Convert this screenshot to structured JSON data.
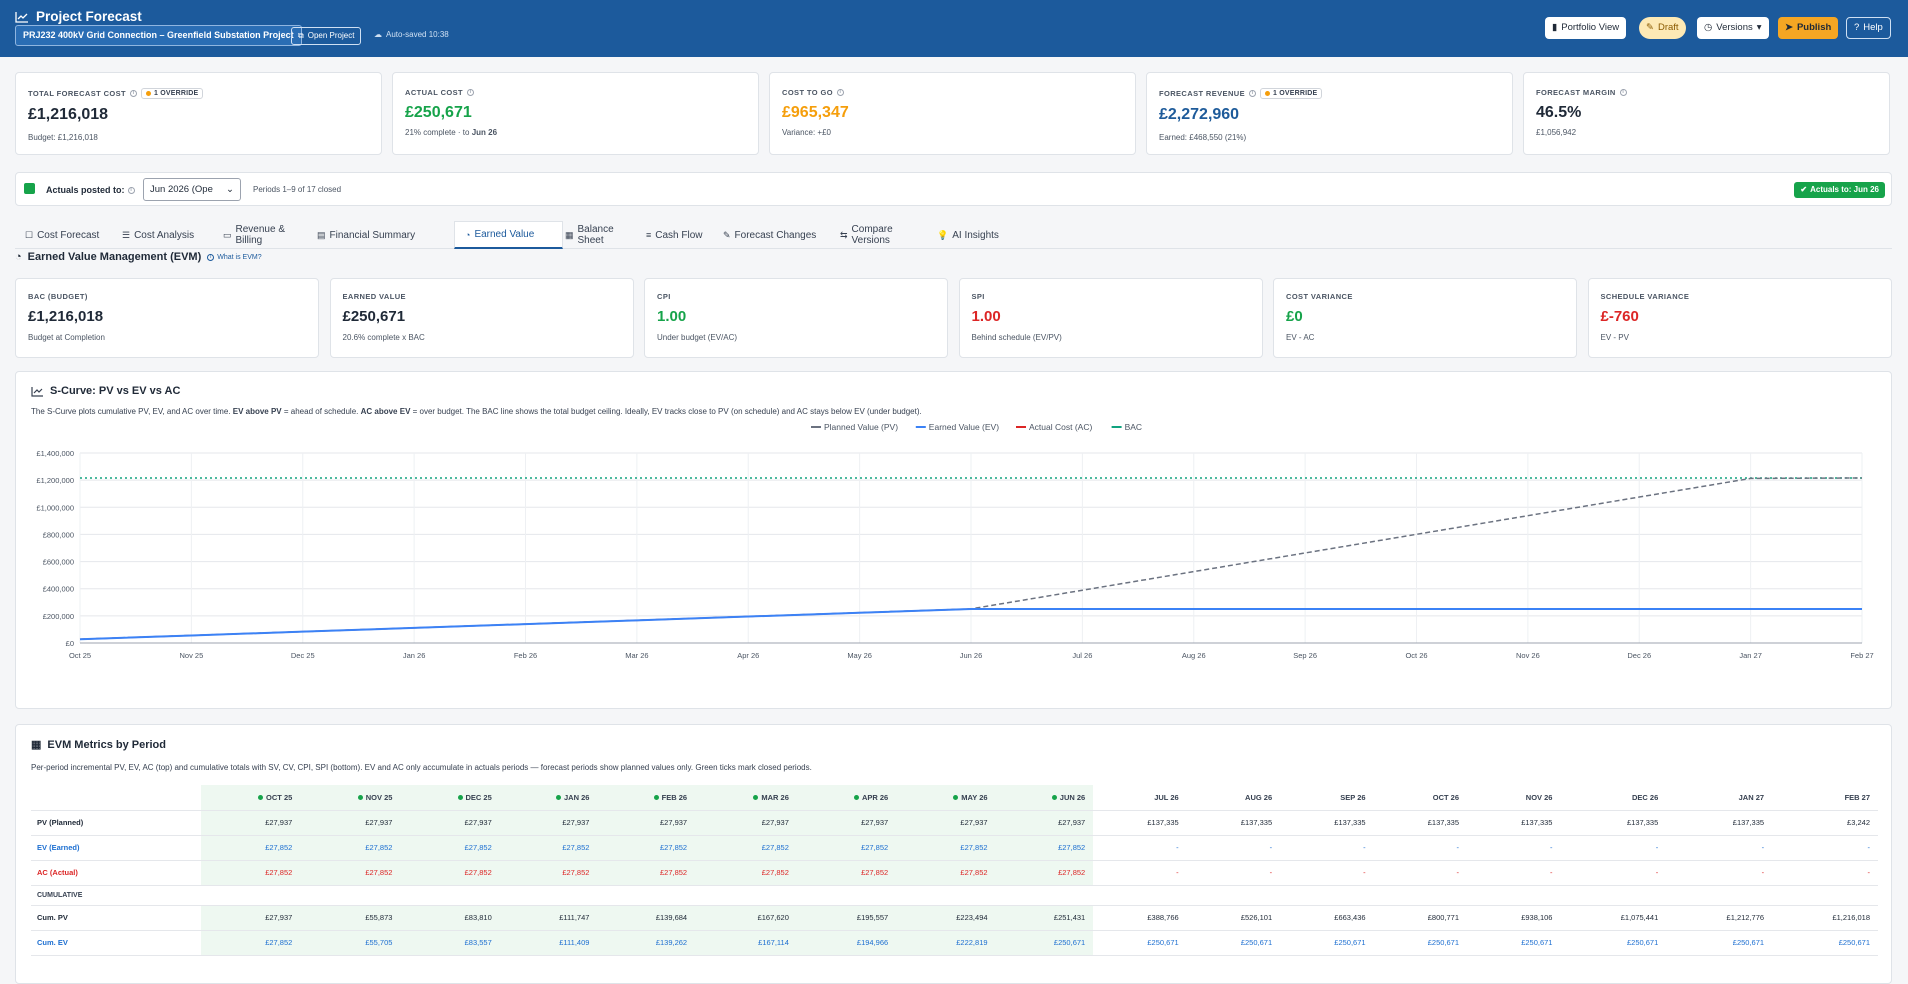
{
  "header": {
    "title": "Project Forecast",
    "project_name": "PRJ232 400kV Grid Connection – Greenfield Substation Project",
    "open_project": "Open Project",
    "autosave": "Auto-saved 10:38",
    "portfolio_view": "Portfolio View",
    "draft": "Draft",
    "versions": "Versions",
    "publish": "Publish",
    "help": "Help"
  },
  "kpis": [
    {
      "label": "TOTAL FORECAST COST",
      "badge": "1 OVERRIDE",
      "value": "£1,216,018",
      "sub": "Budget: £1,216,018",
      "color": "#1f2937"
    },
    {
      "label": "ACTUAL COST",
      "value": "£250,671",
      "sub_a": "21% complete · to ",
      "sub_b": "Jun 26",
      "color": "#16a34a"
    },
    {
      "label": "COST TO GO",
      "value": "£965,347",
      "sub": "Variance: +£0",
      "color": "#f59e0b"
    },
    {
      "label": "FORECAST REVENUE",
      "badge": "1 OVERRIDE",
      "value": "£2,272,960",
      "sub": "Earned: £468,550 (21%)",
      "color": "#1e5b9a"
    },
    {
      "label": "FORECAST MARGIN",
      "value": "46.5%",
      "sub": "£1,056,942",
      "color": "#1f2937"
    }
  ],
  "actuals": {
    "label": "Actuals posted to:",
    "select_value": "Jun 2026 (Ope",
    "periods": "Periods 1–9 of 17 closed",
    "badge": "Actuals to: Jun 26"
  },
  "tabs": [
    "Cost Forecast",
    "Cost Analysis",
    "Revenue & Billing",
    "Financial Summary",
    "Earned Value",
    "Balance Sheet",
    "Cash Flow",
    "Forecast Changes",
    "Compare Versions",
    "AI Insights"
  ],
  "evm": {
    "title": "Earned Value Management (EVM)",
    "what_is": "What is EVM?",
    "metrics": [
      {
        "label": "BAC (BUDGET)",
        "value": "£1,216,018",
        "sub": "Budget at Completion",
        "color": "#1f2937"
      },
      {
        "label": "EARNED VALUE",
        "value": "£250,671",
        "sub": "20.6% complete x BAC",
        "color": "#1f2937"
      },
      {
        "label": "CPI",
        "value": "1.00",
        "sub": "Under budget (EV/AC)",
        "color": "#16a34a"
      },
      {
        "label": "SPI",
        "value": "1.00",
        "sub": "Behind schedule (EV/PV)",
        "color": "#dc2626"
      },
      {
        "label": "COST VARIANCE",
        "value": "£0",
        "sub": "EV - AC",
        "color": "#16a34a"
      },
      {
        "label": "SCHEDULE VARIANCE",
        "value": "£-760",
        "sub": "EV - PV",
        "color": "#dc2626"
      }
    ]
  },
  "scurve": {
    "title": "S-Curve: PV vs EV vs AC",
    "desc_1": "The S-Curve plots cumulative PV, EV, and AC over time. ",
    "desc_b1": "EV above PV",
    "desc_2": " = ahead of schedule. ",
    "desc_b2": "AC above EV",
    "desc_3": " = over budget. The BAC line shows the total budget ceiling. Ideally, EV tracks close to PV (on schedule) and AC stays below EV (under budget)."
  },
  "chart_data": {
    "type": "line",
    "x": [
      "Oct 25",
      "Nov 25",
      "Dec 25",
      "Jan 26",
      "Feb 26",
      "Mar 26",
      "Apr 26",
      "May 26",
      "Jun 26",
      "Jul 26",
      "Aug 26",
      "Sep 26",
      "Oct 26",
      "Nov 26",
      "Dec 26",
      "Jan 27",
      "Feb 27"
    ],
    "yticks": [
      "£0",
      "£200,000",
      "£400,000",
      "£600,000",
      "£800,000",
      "£1,000,000",
      "£1,200,000",
      "£1,400,000"
    ],
    "ylim": [
      0,
      1400000
    ],
    "legend_position": "top-center",
    "grid": true,
    "series": [
      {
        "name": "Planned Value (PV)",
        "color": "#6b7280",
        "dash": "dashed",
        "values": [
          27937,
          55873,
          83810,
          111747,
          139684,
          167620,
          195557,
          223494,
          251431,
          388766,
          526101,
          663436,
          800771,
          938106,
          1075441,
          1212776,
          1216018
        ]
      },
      {
        "name": "Earned Value (EV)",
        "color": "#3b82f6",
        "dash": "solid",
        "values": [
          27852,
          55705,
          83557,
          111409,
          139262,
          167114,
          194966,
          222819,
          250671,
          250671,
          250671,
          250671,
          250671,
          250671,
          250671,
          250671,
          250671
        ]
      },
      {
        "name": "Actual Cost (AC)",
        "color": "#dc2626",
        "dash": "solid",
        "values": [
          27852,
          55705,
          83557,
          111409,
          139262,
          167114,
          194966,
          222819,
          250671,
          250671,
          250671,
          250671,
          250671,
          250671,
          250671,
          250671,
          250671
        ]
      },
      {
        "name": "BAC",
        "color": "#10a37f",
        "dash": "dotted",
        "values": [
          1216018,
          1216018,
          1216018,
          1216018,
          1216018,
          1216018,
          1216018,
          1216018,
          1216018,
          1216018,
          1216018,
          1216018,
          1216018,
          1216018,
          1216018,
          1216018,
          1216018
        ]
      }
    ]
  },
  "table": {
    "title": "EVM Metrics by Period",
    "desc": "Per-period incremental PV, EV, AC (top) and cumulative totals with SV, CV, CPI, SPI (bottom). EV and AC only accumulate in actuals periods — forecast periods show planned values only. Green ticks mark closed periods.",
    "columns": [
      "OCT 25",
      "NOV 25",
      "DEC 25",
      "JAN 26",
      "FEB 26",
      "MAR 26",
      "APR 26",
      "MAY 26",
      "JUN 26",
      "JUL 26",
      "AUG 26",
      "SEP 26",
      "OCT 26",
      "NOV 26",
      "DEC 26",
      "JAN 27",
      "FEB 27"
    ],
    "closed_count": 9,
    "section_label": "CUMULATIVE",
    "rows_top": [
      {
        "label": "PV (Planned)",
        "color": "#1f2937",
        "cells": [
          "£27,937",
          "£27,937",
          "£27,937",
          "£27,937",
          "£27,937",
          "£27,937",
          "£27,937",
          "£27,937",
          "£27,937",
          "£137,335",
          "£137,335",
          "£137,335",
          "£137,335",
          "£137,335",
          "£137,335",
          "£137,335",
          "£3,242"
        ]
      },
      {
        "label": "EV (Earned)",
        "color": "#1d6fd1",
        "cells": [
          "£27,852",
          "£27,852",
          "£27,852",
          "£27,852",
          "£27,852",
          "£27,852",
          "£27,852",
          "£27,852",
          "£27,852",
          "-",
          "-",
          "-",
          "-",
          "-",
          "-",
          "-",
          "-"
        ]
      },
      {
        "label": "AC (Actual)",
        "color": "#dc2626",
        "cells": [
          "£27,852",
          "£27,852",
          "£27,852",
          "£27,852",
          "£27,852",
          "£27,852",
          "£27,852",
          "£27,852",
          "£27,852",
          "-",
          "-",
          "-",
          "-",
          "-",
          "-",
          "-",
          "-"
        ]
      }
    ],
    "rows_cum": [
      {
        "label": "Cum. PV",
        "color": "#1f2937",
        "cells": [
          "£27,937",
          "£55,873",
          "£83,810",
          "£111,747",
          "£139,684",
          "£167,620",
          "£195,557",
          "£223,494",
          "£251,431",
          "£388,766",
          "£526,101",
          "£663,436",
          "£800,771",
          "£938,106",
          "£1,075,441",
          "£1,212,776",
          "£1,216,018"
        ]
      },
      {
        "label": "Cum. EV",
        "color": "#1d6fd1",
        "cells": [
          "£27,852",
          "£55,705",
          "£83,557",
          "£111,409",
          "£139,262",
          "£167,114",
          "£194,966",
          "£222,819",
          "£250,671",
          "£250,671",
          "£250,671",
          "£250,671",
          "£250,671",
          "£250,671",
          "£250,671",
          "£250,671",
          "£250,671"
        ]
      }
    ]
  }
}
